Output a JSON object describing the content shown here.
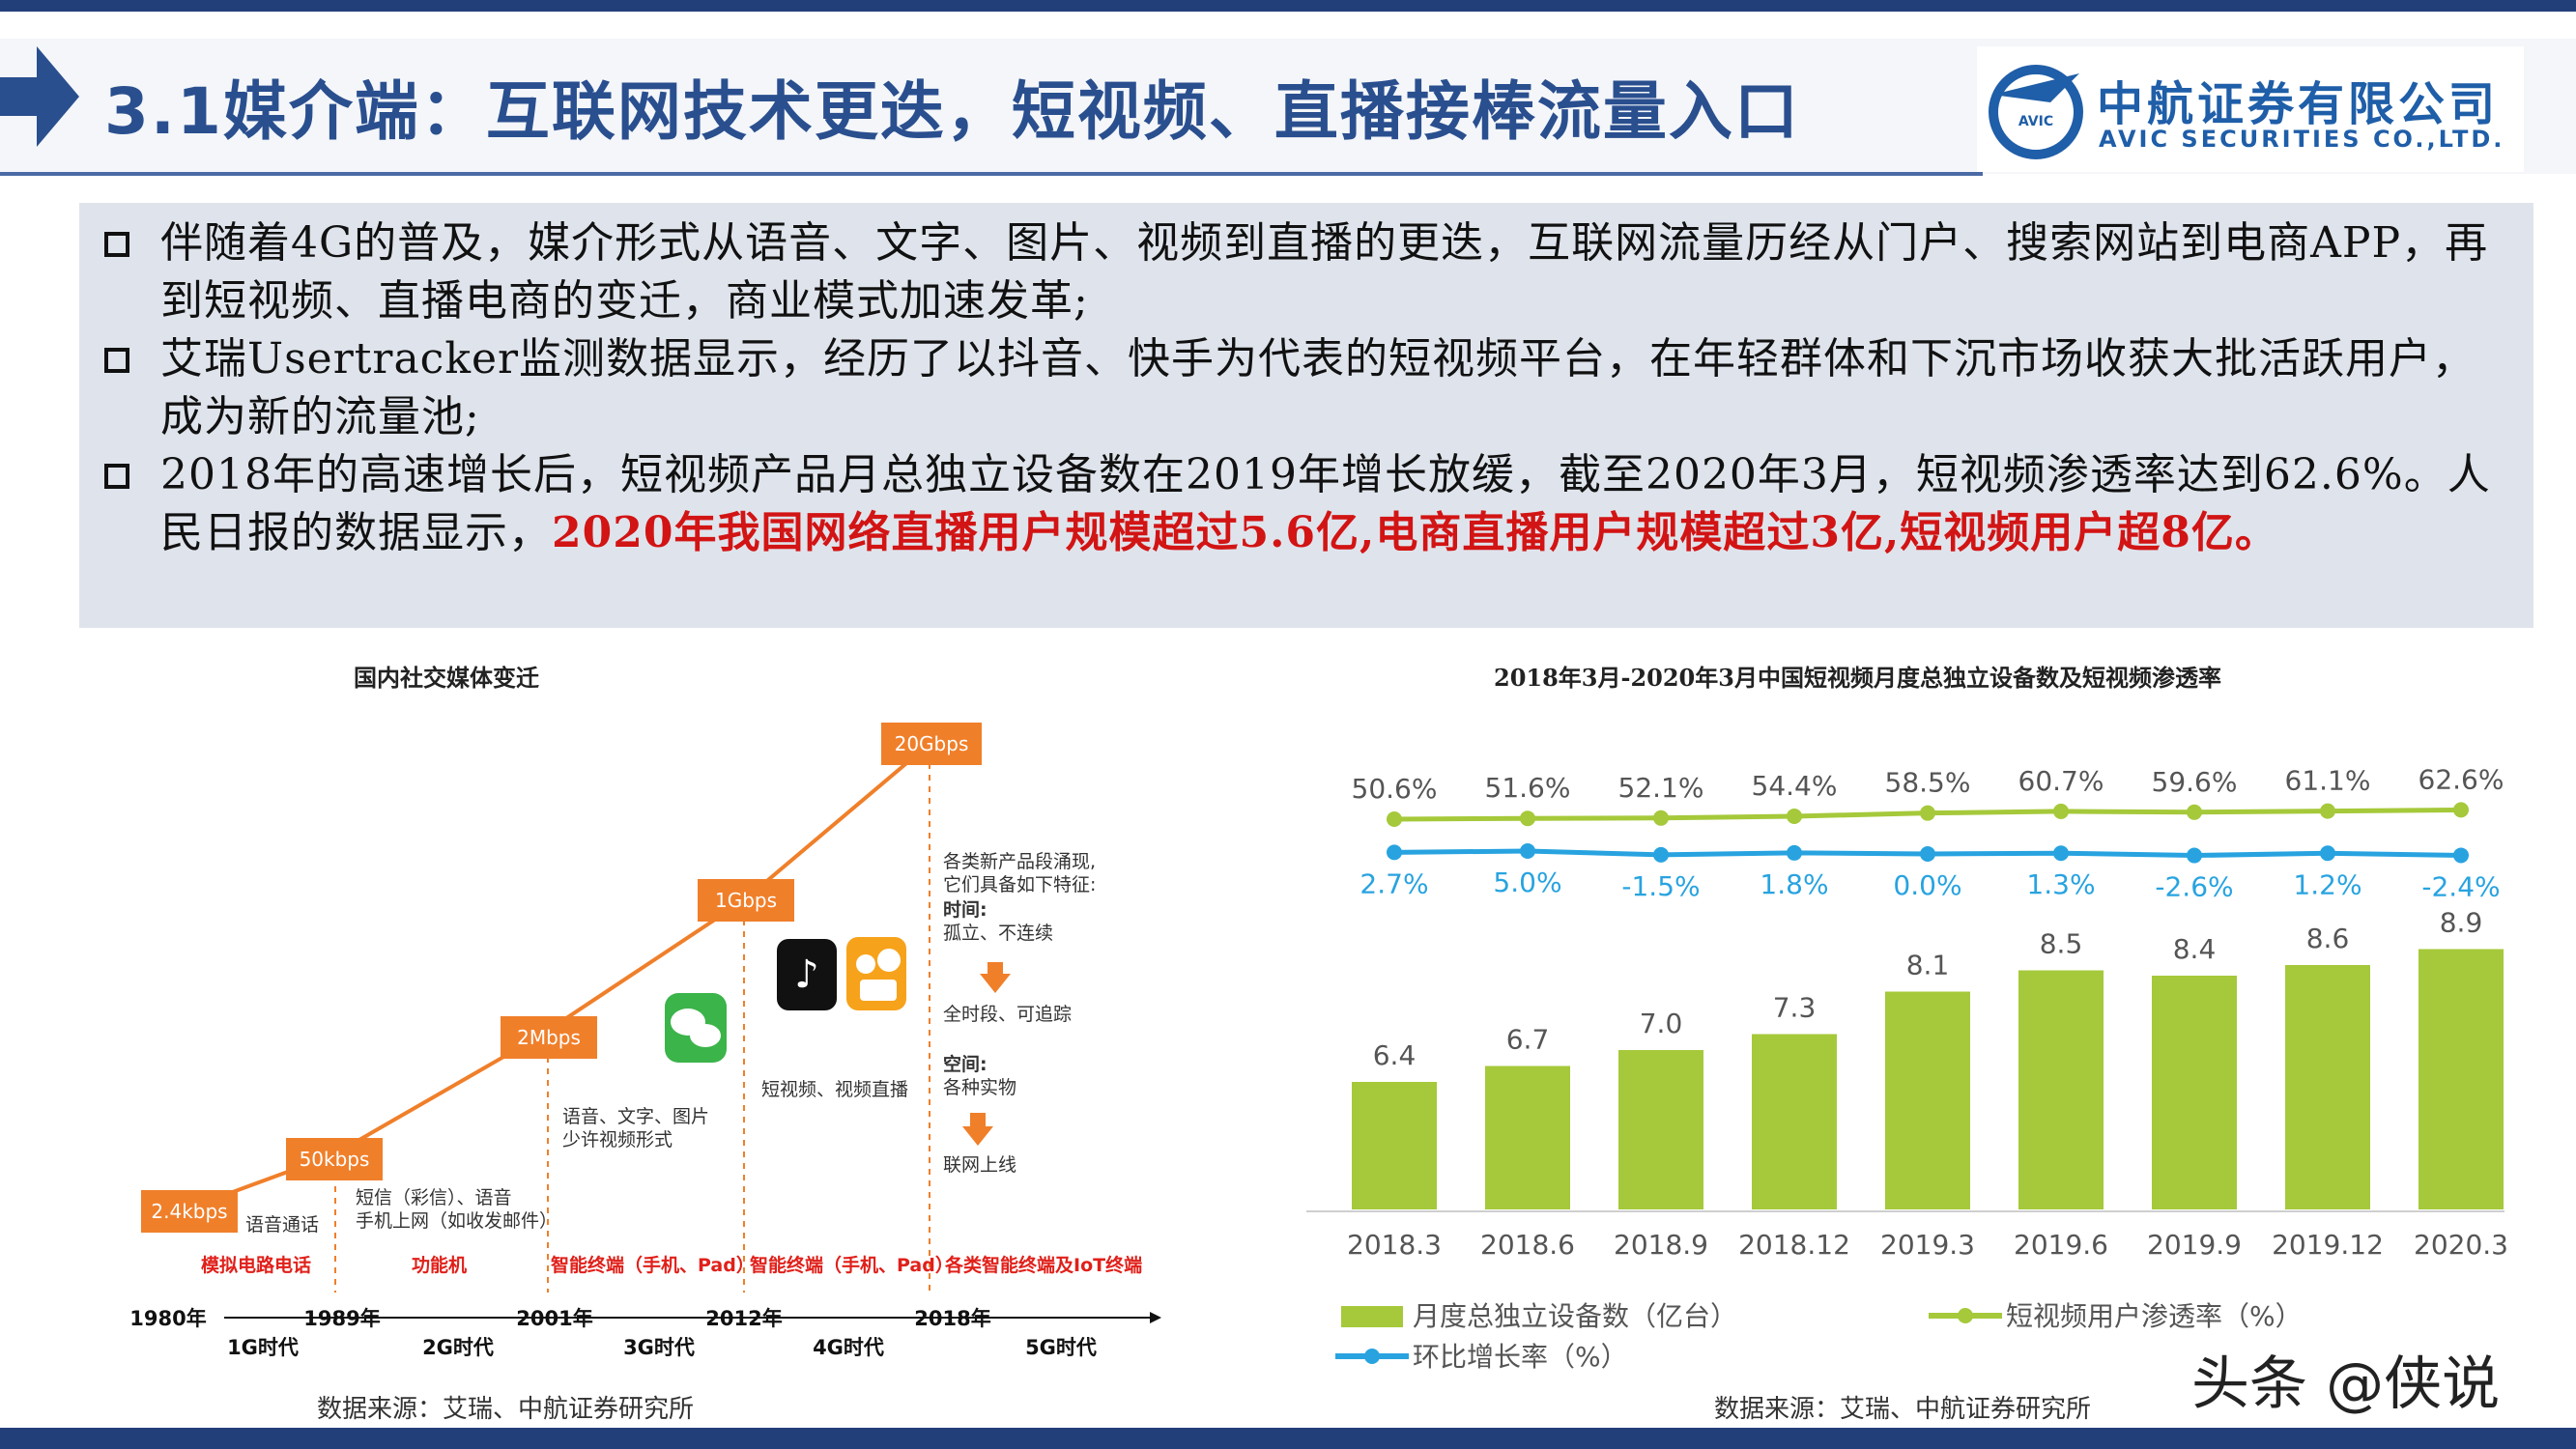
{
  "header": {
    "section_num": "3.1",
    "title_text": "媒介端：互联网技术更迭，短视频、直播接棒流量入口",
    "logo_cn": "中航证券有限公司",
    "logo_en": "AVIC SECURITIES CO.,LTD.",
    "logo_badge": "AVIC",
    "brand_color": "#2a4f8f"
  },
  "bullets": [
    {
      "text": "伴随着4G的普及，媒介形式从语音、文字、图片、视频到直播的更迭，互联网流量历经从门户、搜索网站到电商APP，再到短视频、直播电商的变迁，商业模式加速发革;"
    },
    {
      "text": "艾瑞Usertracker监测数据显示，经历了以抖音、快手为代表的短视频平台，在年轻群体和下沉市场收获大批活跃用户，成为新的流量池;"
    },
    {
      "text_plain": "2018年的高速增长后，短视频产品月总独立设备数在2019年增长放缓，截至2020年3月，短视频渗透率达到62.6%。人民日报的数据显示，",
      "text_red": "2020年我国网络直播用户规模超过5.6亿,电商直播用户规模超过3亿,短视频用户超8亿。"
    }
  ],
  "left_panel": {
    "title": "国内社交媒体变迁",
    "source": "数据来源：艾瑞、中航证券研究所",
    "speeds": [
      "2.4kbps",
      "50kbps",
      "2Mbps",
      "1Gbps",
      "20Gbps"
    ],
    "descriptions": {
      "d1": "语音通话",
      "d2a": "短信（彩信）、语音",
      "d2b": "手机上网（如收发邮件）",
      "d3a": "语音、文字、图片",
      "d3b": "少许视频形式",
      "d4": "短视频、视频直播",
      "d5a": "各类新产品段涌现,",
      "d5b": "它们具备如下特征:",
      "d5c": "时间:",
      "d5d": "孤立、不连续",
      "d5e": "全时段、可追踪",
      "d5f": "空间:",
      "d5g": "各种实物",
      "d5h": "联网上线"
    },
    "terminals": [
      "模拟电路电话",
      "功能机",
      "智能终端（手机、Pad）",
      "智能终端（手机、Pad）",
      "各类智能终端及IoT终端"
    ],
    "years": [
      "1980年",
      "1989年",
      "2001年",
      "2012年",
      "2018年"
    ],
    "eras": [
      "1G时代",
      "2G时代",
      "3G时代",
      "4G时代",
      "5G时代"
    ],
    "accent_orange": "#f07f2a",
    "terminal_red": "#e0201a"
  },
  "right_panel": {
    "title": "2018年3月-2020年3月中国短视频月度总独立设备数及短视频渗透率",
    "source": "数据来源：艾瑞、中航证券研究所"
  },
  "chart_data": {
    "type": "bar",
    "title": "2018年3月-2020年3月中国短视频月度总独立设备数及短视频渗透率",
    "categories": [
      "2018.3",
      "2018.6",
      "2018.9",
      "2018.12",
      "2019.3",
      "2019.6",
      "2019.9",
      "2019.12",
      "2020.3"
    ],
    "series": [
      {
        "name": "月度总独立设备数（亿台）",
        "type": "bar",
        "color": "#a5c93a",
        "values": [
          6.4,
          6.7,
          7.0,
          7.3,
          8.1,
          8.5,
          8.4,
          8.6,
          8.9
        ]
      },
      {
        "name": "短视频用户渗透率（%）",
        "type": "line",
        "color": "#a5c93a",
        "values": [
          50.6,
          51.6,
          52.1,
          54.4,
          58.5,
          60.7,
          59.6,
          61.1,
          62.6
        ],
        "labels": [
          "50.6%",
          "51.6%",
          "52.1%",
          "54.4%",
          "58.5%",
          "60.7%",
          "59.6%",
          "61.1%",
          "62.6%"
        ]
      },
      {
        "name": "环比增长率（%）",
        "type": "line",
        "color": "#28a3e0",
        "values": [
          2.7,
          5.0,
          -1.5,
          1.8,
          0.0,
          1.3,
          -2.6,
          1.2,
          -2.4
        ],
        "labels": [
          "2.7%",
          "5.0%",
          "-1.5%",
          "1.8%",
          "0.0%",
          "1.3%",
          "-2.6%",
          "1.2%",
          "-2.4%"
        ]
      }
    ],
    "legend": [
      "月度总独立设备数（亿台）",
      "短视频用户渗透率（%）",
      "环比增长率（%）"
    ],
    "legend_position": "bottom",
    "grid": false
  },
  "watermark": "头条 @侠说"
}
